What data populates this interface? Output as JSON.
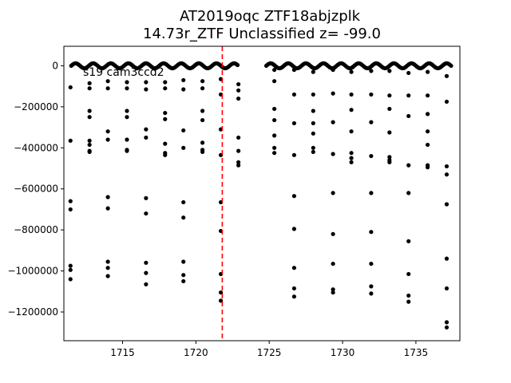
{
  "chart_data": {
    "type": "scatter",
    "title_line1": "AT2019oqc  ZTF18abjzplk",
    "title_line2": "14.73r_ZTF Unclassified z= -99.0",
    "annotation": "s19 cam3ccd2",
    "xlim": [
      1711.0,
      1738.0
    ],
    "ylim": [
      -1340000,
      95000
    ],
    "x_ticks": [
      1715,
      1720,
      1725,
      1730,
      1735
    ],
    "x_tick_labels": [
      "1715",
      "1720",
      "1725",
      "1730",
      "1735"
    ],
    "y_ticks": [
      0,
      -200000,
      -400000,
      -600000,
      -800000,
      -1000000,
      -1200000
    ],
    "y_tick_labels": [
      "0",
      "−200000",
      "−400000",
      "−600000",
      "−800000",
      "−1000000",
      "−1200000"
    ],
    "vline_x": 1721.8,
    "vline_color": "#ff0000",
    "marker_color": "#000000",
    "baseline": {
      "segments": [
        [
          1711.5,
          1722.9
        ],
        [
          1724.8,
          1737.4
        ]
      ],
      "step": 0.09,
      "amplitude": 12000,
      "period": 1.2
    },
    "columns": [
      {
        "x": 1711.45,
        "y": [
          -105000,
          -365000,
          -660000,
          -700000,
          -975000,
          -995000,
          -1040000
        ]
      },
      {
        "x": 1712.75,
        "y": [
          -85000,
          -110000,
          -220000,
          -250000,
          -365000,
          -385000,
          -415000,
          -420000
        ]
      },
      {
        "x": 1714.0,
        "y": [
          -75000,
          -110000,
          -320000,
          -360000,
          -640000,
          -695000,
          -955000,
          -985000,
          -1025000
        ]
      },
      {
        "x": 1715.3,
        "y": [
          -80000,
          -110000,
          -220000,
          -250000,
          -360000,
          -410000,
          -415000
        ]
      },
      {
        "x": 1716.6,
        "y": [
          -80000,
          -115000,
          -310000,
          -350000,
          -645000,
          -720000,
          -960000,
          -1010000,
          -1065000
        ]
      },
      {
        "x": 1717.9,
        "y": [
          -80000,
          -110000,
          -230000,
          -260000,
          -380000,
          -425000,
          -435000
        ]
      },
      {
        "x": 1719.15,
        "y": [
          -70000,
          -115000,
          -315000,
          -400000,
          -665000,
          -740000,
          -955000,
          -1020000,
          -1050000
        ]
      },
      {
        "x": 1720.45,
        "y": [
          -75000,
          -110000,
          -220000,
          -265000,
          -375000,
          -410000,
          -420000
        ]
      },
      {
        "x": 1721.7,
        "y": [
          -65000,
          -140000,
          -310000,
          -435000,
          -665000,
          -805000,
          -1015000,
          -1105000,
          -1145000
        ]
      },
      {
        "x": 1722.9,
        "y": [
          -90000,
          -120000,
          -160000,
          -350000,
          -415000,
          -470000,
          -485000
        ]
      },
      {
        "x": 1725.35,
        "y": [
          -20000,
          -75000,
          -210000,
          -265000,
          -340000,
          -400000,
          -425000
        ]
      },
      {
        "x": 1726.7,
        "y": [
          -20000,
          -140000,
          -280000,
          -435000,
          -635000,
          -795000,
          -985000,
          -1085000,
          -1125000
        ]
      },
      {
        "x": 1728.0,
        "y": [
          -30000,
          -140000,
          -220000,
          -280000,
          -330000,
          -400000,
          -420000
        ]
      },
      {
        "x": 1729.35,
        "y": [
          -20000,
          -135000,
          -275000,
          -430000,
          -620000,
          -820000,
          -965000,
          -1090000,
          -1105000
        ]
      },
      {
        "x": 1730.6,
        "y": [
          -30000,
          -140000,
          -215000,
          -320000,
          -425000,
          -450000,
          -470000
        ]
      },
      {
        "x": 1731.95,
        "y": [
          -25000,
          -140000,
          -275000,
          -440000,
          -620000,
          -810000,
          -965000,
          -1075000,
          -1110000
        ]
      },
      {
        "x": 1733.2,
        "y": [
          -25000,
          -145000,
          -210000,
          -325000,
          -445000,
          -460000,
          -470000
        ]
      },
      {
        "x": 1734.5,
        "y": [
          -35000,
          -145000,
          -245000,
          -485000,
          -620000,
          -855000,
          -1015000,
          -1120000,
          -1150000
        ]
      },
      {
        "x": 1735.8,
        "y": [
          -30000,
          -145000,
          -235000,
          -320000,
          -385000,
          -485000,
          -495000
        ]
      },
      {
        "x": 1737.1,
        "y": [
          -50000,
          -175000,
          -490000,
          -530000,
          -675000,
          -940000,
          -1085000,
          -1250000,
          -1275000
        ]
      }
    ]
  }
}
